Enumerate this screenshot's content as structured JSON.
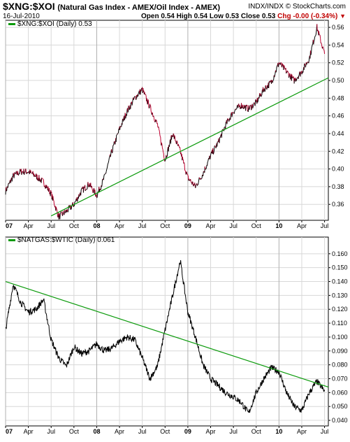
{
  "header": {
    "symbol": "$XNG:$XOI",
    "description": "(Natural Gas Index - AMEX/Oil Index - AMEX)",
    "meta": "INDX/INDX",
    "watermark": "© StockCharts.com",
    "date": "16-Jul-2010",
    "open": "Open 0.54",
    "high": "High 0.54",
    "low": "Low 0.53",
    "close": "Close 0.53",
    "chg": "Chg -0.00 (-0.34%)"
  },
  "colors": {
    "price_up": "#000000",
    "price_down": "#c00030",
    "trendline": "#0a9a0a",
    "grid": "#d8d8d8"
  },
  "chart_data": [
    {
      "type": "line",
      "title": "$XNG:$XOI (Daily) 0.53",
      "ylim": [
        0.342,
        0.568
      ],
      "y_ticks": [
        "0.36",
        "0.38",
        "0.40",
        "0.42",
        "0.44",
        "0.46",
        "0.48",
        "0.50",
        "0.52",
        "0.54",
        "0.56"
      ],
      "x_ticks": [
        "07",
        "Apr",
        "Jul",
        "Oct",
        "08",
        "Apr",
        "Jul",
        "Oct",
        "09",
        "Apr",
        "Jul",
        "Oct",
        "10",
        "Apr",
        "Jul"
      ],
      "x": [
        "2007-01",
        "2007-02",
        "2007-03",
        "2007-04",
        "2007-05",
        "2007-06",
        "2007-07",
        "2007-08",
        "2007-09",
        "2007-10",
        "2007-11",
        "2007-12",
        "2008-01",
        "2008-02",
        "2008-03",
        "2008-04",
        "2008-05",
        "2008-06",
        "2008-07",
        "2008-08",
        "2008-09",
        "2008-10",
        "2008-11",
        "2008-12",
        "2009-01",
        "2009-02",
        "2009-03",
        "2009-04",
        "2009-05",
        "2009-06",
        "2009-07",
        "2009-08",
        "2009-09",
        "2009-10",
        "2009-11",
        "2009-12",
        "2010-01",
        "2010-02",
        "2010-03",
        "2010-04",
        "2010-05",
        "2010-06",
        "2010-07"
      ],
      "series": [
        {
          "values": [
            0.375,
            0.392,
            0.397,
            0.397,
            0.392,
            0.385,
            0.372,
            0.346,
            0.352,
            0.36,
            0.375,
            0.383,
            0.37,
            0.39,
            0.42,
            0.445,
            0.465,
            0.48,
            0.49,
            0.47,
            0.45,
            0.41,
            0.44,
            0.42,
            0.39,
            0.38,
            0.395,
            0.415,
            0.43,
            0.45,
            0.465,
            0.472,
            0.468,
            0.475,
            0.49,
            0.498,
            0.52,
            0.51,
            0.5,
            0.51,
            0.525,
            0.56,
            0.53
          ]
        }
      ],
      "trendline": {
        "from": [
          "2007-07",
          0.347
        ],
        "to": [
          "2010-07",
          0.503
        ]
      }
    },
    {
      "type": "line",
      "title": "$NATGAS:$WTIC (Daily) 0.061",
      "ylim": [
        0.036,
        0.172
      ],
      "y_ticks": [
        "0.040",
        "0.050",
        "0.060",
        "0.070",
        "0.080",
        "0.090",
        "0.100",
        "0.110",
        "0.120",
        "0.130",
        "0.140",
        "0.150",
        "0.160"
      ],
      "x_ticks": [
        "07",
        "Apr",
        "Jul",
        "Oct",
        "08",
        "Apr",
        "Jul",
        "Oct",
        "09",
        "Apr",
        "Jul",
        "Oct",
        "10",
        "Apr",
        "Jul"
      ],
      "x": [
        "2007-01",
        "2007-02",
        "2007-03",
        "2007-04",
        "2007-05",
        "2007-06",
        "2007-07",
        "2007-08",
        "2007-09",
        "2007-10",
        "2007-11",
        "2007-12",
        "2008-01",
        "2008-02",
        "2008-03",
        "2008-04",
        "2008-05",
        "2008-06",
        "2008-07",
        "2008-08",
        "2008-09",
        "2008-10",
        "2008-11",
        "2008-12",
        "2009-01",
        "2009-02",
        "2009-03",
        "2009-04",
        "2009-05",
        "2009-06",
        "2009-07",
        "2009-08",
        "2009-09",
        "2009-10",
        "2009-11",
        "2009-12",
        "2010-01",
        "2010-02",
        "2010-03",
        "2010-04",
        "2010-05",
        "2010-06",
        "2010-07"
      ],
      "series": [
        {
          "values": [
            0.105,
            0.138,
            0.125,
            0.118,
            0.12,
            0.127,
            0.098,
            0.085,
            0.079,
            0.093,
            0.088,
            0.09,
            0.095,
            0.09,
            0.092,
            0.097,
            0.1,
            0.098,
            0.085,
            0.07,
            0.079,
            0.105,
            0.13,
            0.155,
            0.118,
            0.1,
            0.08,
            0.07,
            0.065,
            0.06,
            0.057,
            0.053,
            0.045,
            0.06,
            0.07,
            0.078,
            0.075,
            0.06,
            0.05,
            0.047,
            0.06,
            0.068,
            0.061
          ]
        }
      ],
      "trendline": {
        "from": [
          "2007-01",
          0.14
        ],
        "to": [
          "2010-07",
          0.064
        ]
      }
    }
  ]
}
